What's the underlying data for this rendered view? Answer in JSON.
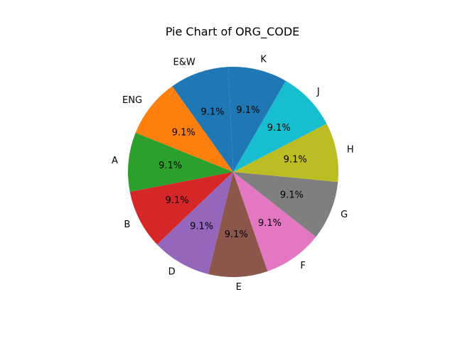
{
  "chart_data": {
    "type": "pie",
    "title": "Pie Chart of ORG_CODE",
    "start_angle_deg": 60,
    "direction": "counterclockwise",
    "slices": [
      {
        "label": "K",
        "value": 1,
        "pct_label": "9.1%",
        "color": "#1f77b4"
      },
      {
        "label": "E&W",
        "value": 1,
        "pct_label": "9.1%",
        "color": "#1f77b4"
      },
      {
        "label": "ENG",
        "value": 1,
        "pct_label": "9.1%",
        "color": "#ff7f0e"
      },
      {
        "label": "A",
        "value": 1,
        "pct_label": "9.1%",
        "color": "#2ca02c"
      },
      {
        "label": "B",
        "value": 1,
        "pct_label": "9.1%",
        "color": "#d62728"
      },
      {
        "label": "D",
        "value": 1,
        "pct_label": "9.1%",
        "color": "#9467bd"
      },
      {
        "label": "E",
        "value": 1,
        "pct_label": "9.1%",
        "color": "#8c564b"
      },
      {
        "label": "F",
        "value": 1,
        "pct_label": "9.1%",
        "color": "#e377c2"
      },
      {
        "label": "G",
        "value": 1,
        "pct_label": "9.1%",
        "color": "#7f7f7f"
      },
      {
        "label": "H",
        "value": 1,
        "pct_label": "9.1%",
        "color": "#bcbd22"
      },
      {
        "label": "J",
        "value": 1,
        "pct_label": "9.1%",
        "color": "#17becf"
      }
    ]
  }
}
